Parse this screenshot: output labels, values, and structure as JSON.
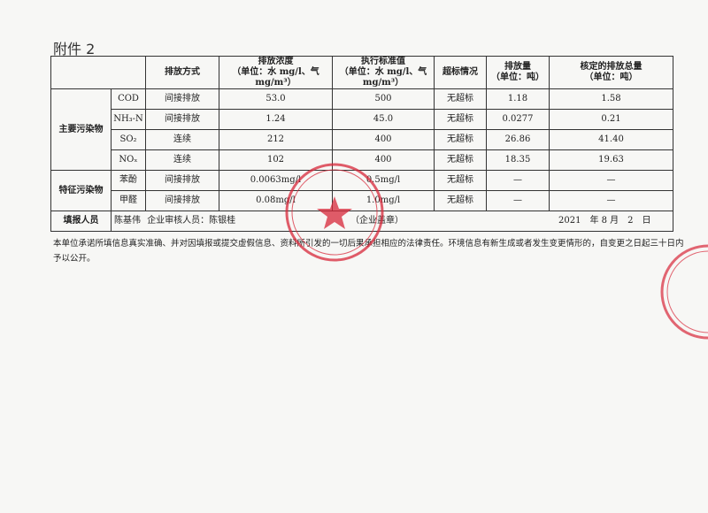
{
  "title": "附件 2",
  "headers": {
    "method": "排放方式",
    "conc": "排放浓度",
    "conc_unit": "（单位：水 mg/l、气 mg/m³）",
    "std": "执行标准值",
    "std_unit": "（单位：水 mg/l、气 mg/m³）",
    "exceed": "超标情况",
    "amount": "排放量",
    "amount_unit": "（单位：吨）",
    "total": "核定的排放总量",
    "total_unit": "（单位：吨）"
  },
  "groups": {
    "main": "主要污染物",
    "char": "特征污染物"
  },
  "rows": [
    {
      "name": "COD",
      "method": "间接排放",
      "conc": "53.0",
      "std": "500",
      "exceed": "无超标",
      "amount": "1.18",
      "total": "1.58"
    },
    {
      "name": "NH₃-N",
      "method": "间接排放",
      "conc": "1.24",
      "std": "45.0",
      "exceed": "无超标",
      "amount": "0.0277",
      "total": "0.21"
    },
    {
      "name": "SO₂",
      "method": "连续",
      "conc": "212",
      "std": "400",
      "exceed": "无超标",
      "amount": "26.86",
      "total": "41.40"
    },
    {
      "name": "NOₓ",
      "method": "连续",
      "conc": "102",
      "std": "400",
      "exceed": "无超标",
      "amount": "18.35",
      "total": "19.63"
    },
    {
      "name": "苯酚",
      "method": "间接排放",
      "conc": "0.0063mg/l",
      "std": "0.5mg/l",
      "exceed": "无超标",
      "amount": "—",
      "total": "—"
    },
    {
      "name": "甲醛",
      "method": "间接排放",
      "conc": "0.08mg/l",
      "std": "1.0mg/l",
      "exceed": "无超标",
      "amount": "—",
      "total": "—"
    }
  ],
  "footer": {
    "label": "填报人员",
    "reporter": "陈基伟",
    "reviewer": "企业审核人员：陈银桂",
    "seal": "（企业盖章）",
    "date": "2021　年 8 月　2　日"
  },
  "note": "本单位承诺所填信息真实准确、并对因填报或提交虚假信息、资料所引发的一切后果承担相应的法律责任。环境信息有新生成或者发生变更情形的，自变更之日起三十日内予以公开。",
  "stamp_color": "#d8283a"
}
